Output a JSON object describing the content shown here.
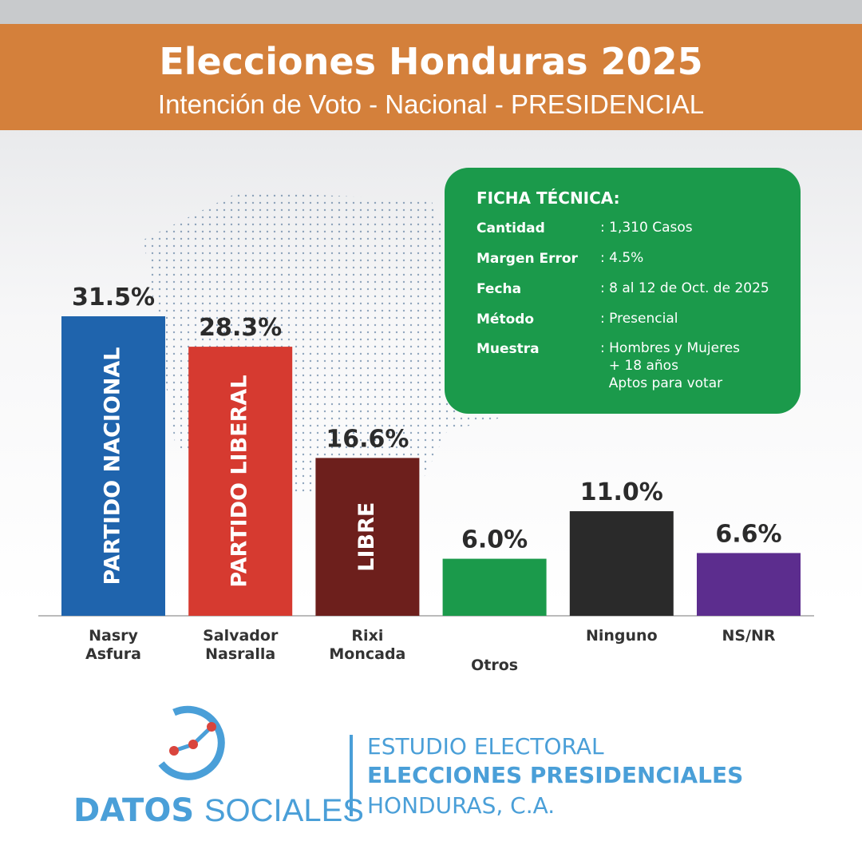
{
  "chart_data": {
    "type": "bar",
    "title": "Elecciones Honduras 2025",
    "subtitle": "Intención de Voto - Nacional - PRESIDENCIAL",
    "categories": [
      "Nasry Asfura",
      "Salvador Nasralla",
      "Rixi Moncada",
      "Otros",
      "Ninguno",
      "NS/NR"
    ],
    "values": [
      31.5,
      28.3,
      16.6,
      6.0,
      11.0,
      6.6
    ],
    "value_labels": [
      "31.5%",
      "28.3%",
      "16.6%",
      "6.0%",
      "11.0%",
      "6.6%"
    ],
    "bar_labels": [
      "PARTIDO NACIONAL",
      "PARTIDO LIBERAL",
      "LIBRE",
      null,
      null,
      null
    ],
    "colors": [
      "#1f64ad",
      "#d63a30",
      "#6d1f1c",
      "#1b9a4b",
      "#2a2a2a",
      "#5c2d8e"
    ]
  },
  "ficha": {
    "title": "FICHA TÉCNICA:",
    "rows": [
      [
        "Cantidad",
        ": 1,310 Casos"
      ],
      [
        "Margen Error",
        ": 4.5%"
      ],
      [
        "Fecha",
        ": 8 al 12 de Oct. de 2025"
      ],
      [
        "Método",
        ": Presencial"
      ],
      [
        "Muestra",
        ": Hombres y Mujeres\n  + 18 años\n  Aptos para votar"
      ]
    ]
  },
  "footer": {
    "logo_bold": "DATOS",
    "logo_light": "SOCIALES",
    "lines": [
      "ESTUDIO ELECTORAL",
      "ELECCIONES PRESIDENCIALES",
      "HONDURAS, C.A."
    ]
  }
}
